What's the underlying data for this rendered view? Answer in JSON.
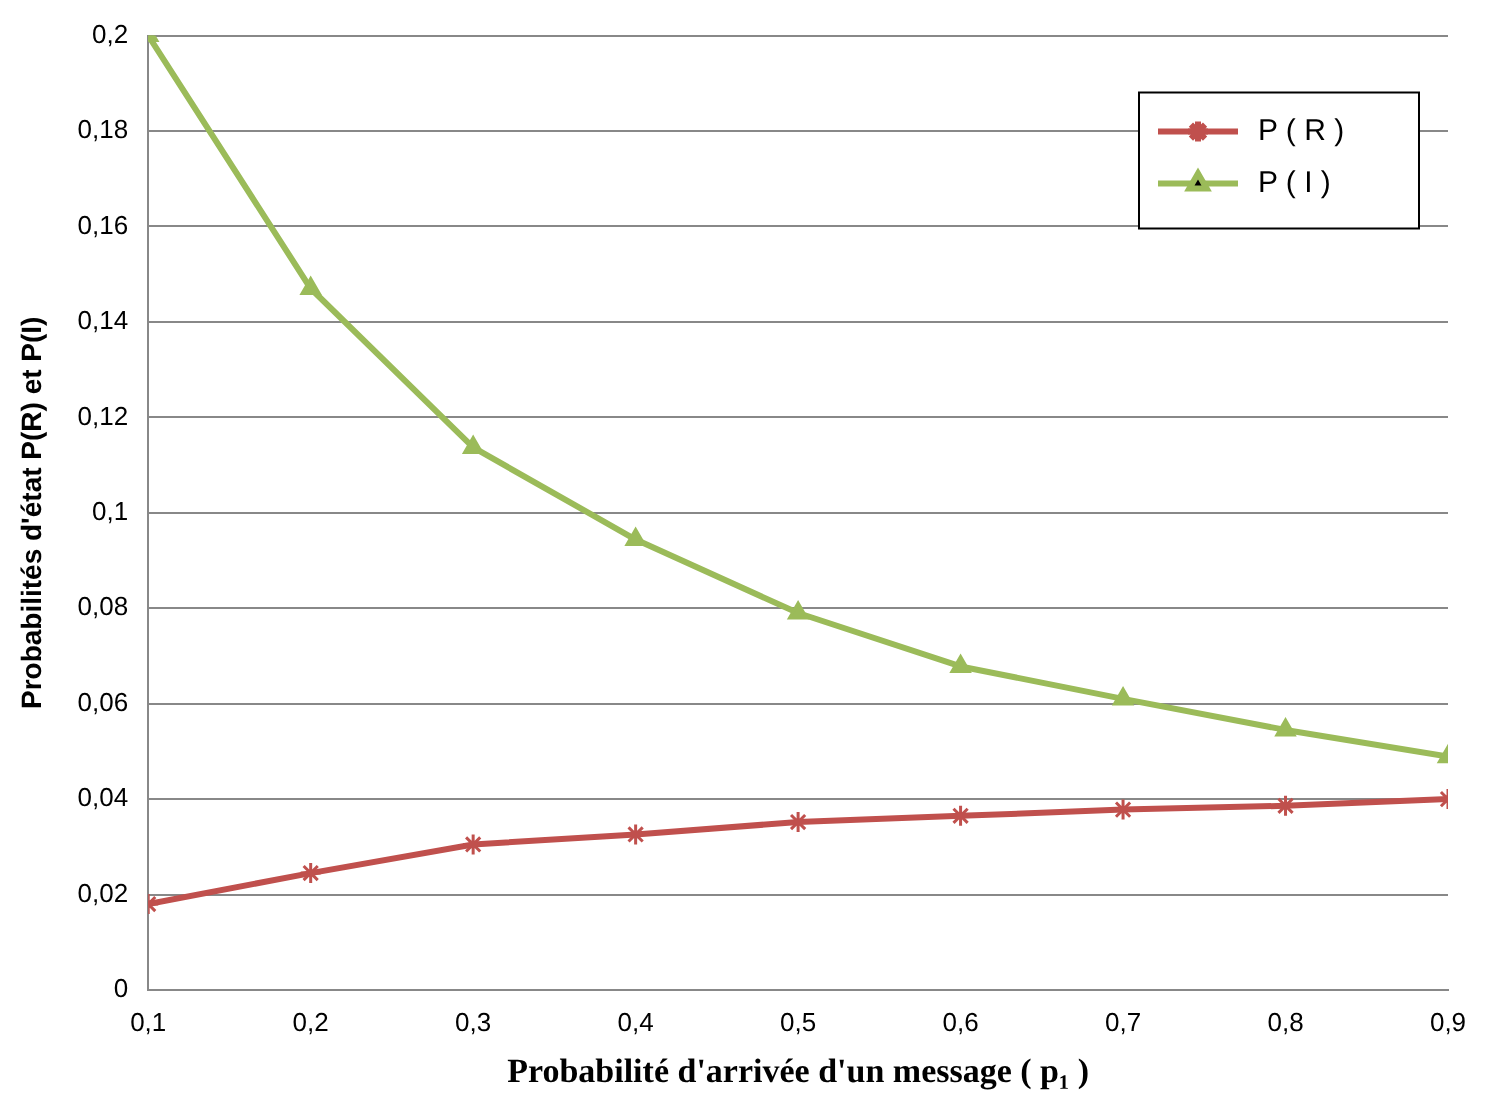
{
  "chart_data": {
    "type": "line",
    "xlabel": "Probabilité d'arrivée d'un message ( p₁ )",
    "ylabel": "Probabilités d'état P(R) et P(I)",
    "x": [
      0.1,
      0.2,
      0.3,
      0.4,
      0.5,
      0.6,
      0.7,
      0.8,
      0.9
    ],
    "series": [
      {
        "name": "P ( R )",
        "color": "#c0504d",
        "marker": "cross",
        "values": [
          0.018,
          0.0245,
          0.0305,
          0.0326,
          0.0352,
          0.0365,
          0.0378,
          0.0386,
          0.04
        ]
      },
      {
        "name": "P ( I )",
        "color": "#9bbb59",
        "marker": "triangle",
        "values": [
          0.2,
          0.147,
          0.1137,
          0.0944,
          0.079,
          0.0678,
          0.061,
          0.0545,
          0.0489
        ]
      }
    ],
    "xlim": [
      0.1,
      0.9
    ],
    "xticks": [
      {
        "value": 0.1,
        "label": "0,1"
      },
      {
        "value": 0.2,
        "label": "0,2"
      },
      {
        "value": 0.3,
        "label": "0,3"
      },
      {
        "value": 0.4,
        "label": "0,4"
      },
      {
        "value": 0.5,
        "label": "0,5"
      },
      {
        "value": 0.6,
        "label": "0,6"
      },
      {
        "value": 0.7,
        "label": "0,7"
      },
      {
        "value": 0.8,
        "label": "0,8"
      },
      {
        "value": 0.9,
        "label": "0,9"
      }
    ],
    "ylim": [
      0,
      0.2
    ],
    "yticks": [
      0,
      {
        "value": 0.02,
        "label": "0,02"
      },
      {
        "value": 0.04,
        "label": "0,04"
      },
      {
        "value": 0.06,
        "label": "0,06"
      },
      {
        "value": 0.08,
        "label": "0,08"
      },
      {
        "value": 0.1,
        "label": "0,1"
      },
      {
        "value": 0.12,
        "label": "0,12"
      },
      {
        "value": 0.14,
        "label": "0,14"
      },
      {
        "value": 0.16,
        "label": "0,16"
      },
      {
        "value": 0.18,
        "label": "0,18"
      },
      {
        "value": 0.2,
        "label": "0,2"
      }
    ],
    "grid": "y",
    "legend": "top right",
    "line_style": "solid"
  }
}
